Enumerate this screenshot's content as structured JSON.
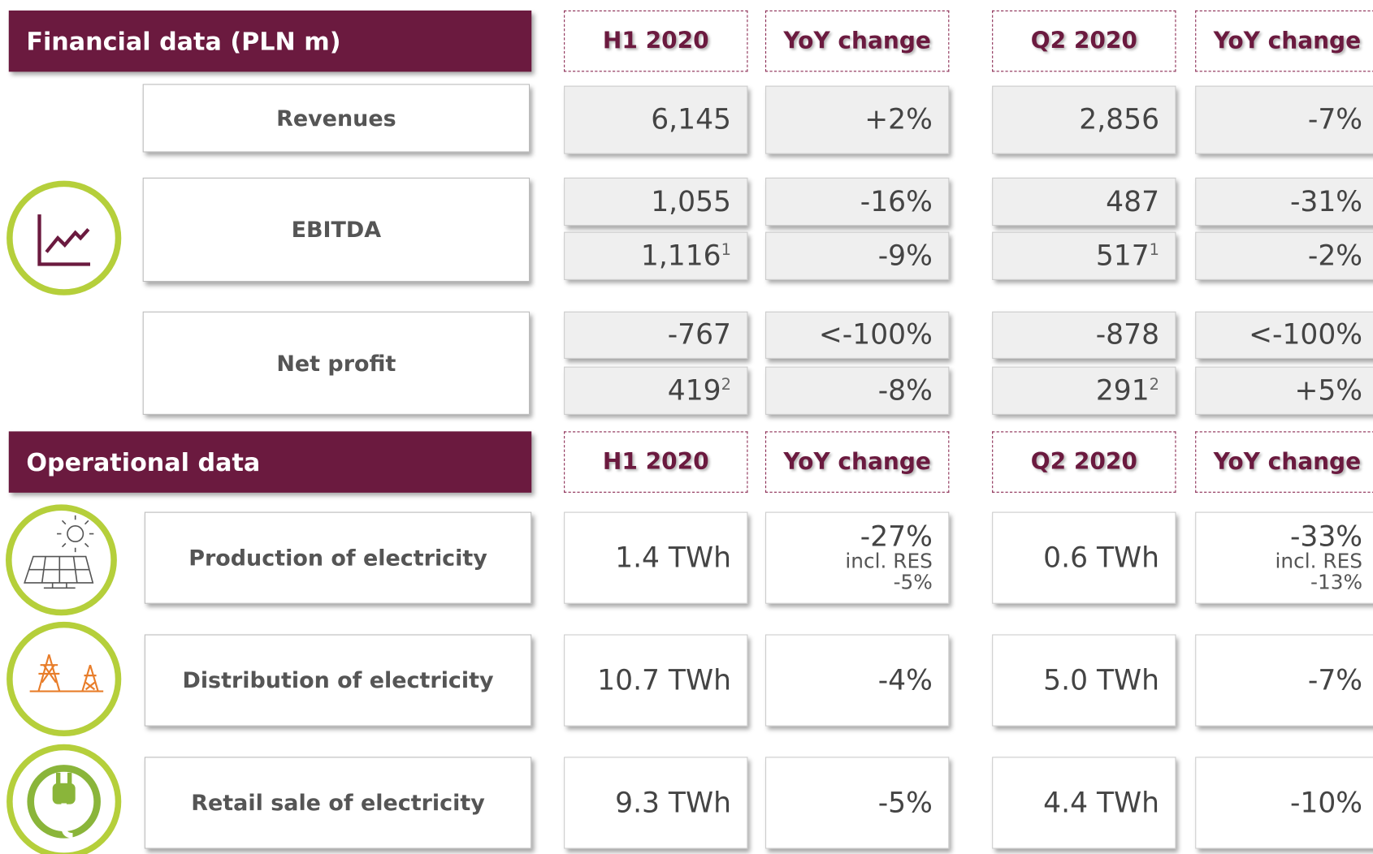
{
  "financial": {
    "title": "Financial data (PLN m)",
    "columns": [
      "H1 2020",
      "YoY change",
      "Q2 2020",
      "YoY change"
    ],
    "rows": [
      {
        "label": "Revenues",
        "lines": [
          [
            "6,145",
            "+2%",
            "2,856",
            "-7%"
          ]
        ]
      },
      {
        "label": "EBITDA",
        "lines": [
          [
            "1,055",
            "-16%",
            "487",
            "-31%"
          ],
          [
            {
              "value": "1,116",
              "sup": "1"
            },
            "-9%",
            {
              "value": "517",
              "sup": "1"
            },
            "-2%"
          ]
        ]
      },
      {
        "label": "Net profit",
        "lines": [
          [
            "-767",
            "<-100%",
            "-878",
            "<-100%"
          ],
          [
            {
              "value": "419",
              "sup": "2"
            },
            "-8%",
            {
              "value": "291",
              "sup": "2"
            },
            "+5%"
          ]
        ]
      }
    ]
  },
  "operational": {
    "title": "Operational data",
    "columns": [
      "H1 2020",
      "YoY change",
      "Q2 2020",
      "YoY change"
    ],
    "rows": [
      {
        "label": "Production of electricity",
        "cells": [
          "1.4 TWh",
          {
            "value": "-27%",
            "detail": [
              "incl. RES",
              "-5%"
            ]
          },
          "0.6 TWh",
          {
            "value": "-33%",
            "detail": [
              "incl. RES",
              "-13%"
            ]
          }
        ]
      },
      {
        "label": "Distribution of electricity",
        "cells": [
          "10.7 TWh",
          "-4%",
          "5.0 TWh",
          "-7%"
        ]
      },
      {
        "label": "Retail sale of electricity",
        "cells": [
          "9.3 TWh",
          "-5%",
          "4.4 TWh",
          "-10%"
        ]
      }
    ]
  }
}
